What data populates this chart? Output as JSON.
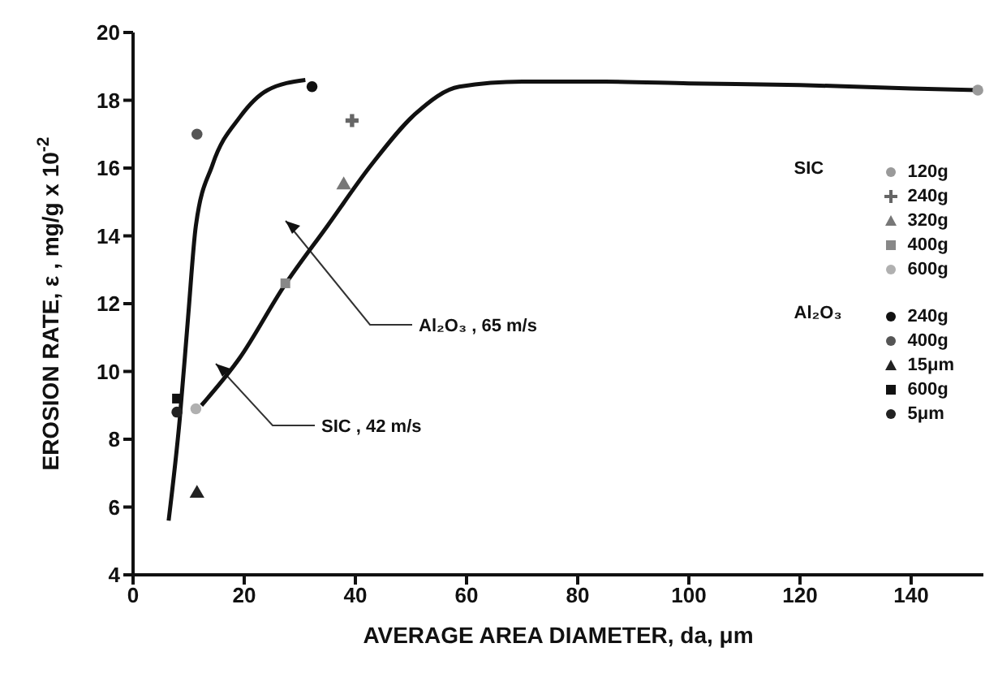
{
  "chart_data": {
    "type": "scatter",
    "xlabel": "AVERAGE AREA DIAMETER, da, μm",
    "ylabel": "EROSION RATE, ε , mg/g x 10$^{-2}$",
    "xlim": [
      0,
      153
    ],
    "ylim": [
      4,
      20
    ],
    "xticks": [
      0,
      20,
      40,
      60,
      80,
      100,
      120,
      140
    ],
    "yticks": [
      4,
      6,
      8,
      10,
      12,
      14,
      16,
      18,
      20
    ],
    "legend": "right",
    "annotations": [
      "SIC",
      "Al₂O₃"
    ],
    "series": [
      {
        "name": "120g",
        "color": "#9a9a9a",
        "marker": "circle",
        "x": [
          152
        ],
        "values": [
          18.3
        ]
      },
      {
        "name": "240g",
        "color": "#666666",
        "marker": "cross",
        "x": [
          39.4
        ],
        "values": [
          17.4
        ]
      },
      {
        "name": "320g",
        "color": "#777777",
        "marker": "triangle",
        "x": [
          37.9
        ],
        "values": [
          15.5
        ]
      },
      {
        "name": "400g",
        "color": "#888888",
        "marker": "square",
        "x": [
          27.4
        ],
        "values": [
          12.6
        ]
      },
      {
        "name": "600g",
        "color": "#b0b0b0",
        "marker": "circle",
        "x": [
          11.3
        ],
        "values": [
          8.9
        ]
      },
      {
        "name": "240g",
        "color": "#111111",
        "marker": "circle",
        "x": [
          32.2
        ],
        "values": [
          18.4
        ]
      },
      {
        "name": "400g",
        "color": "#555555",
        "marker": "circle",
        "x": [
          11.5
        ],
        "values": [
          17.0
        ]
      },
      {
        "name": "15μm",
        "color": "#222222",
        "marker": "triangle",
        "x": [
          11.5
        ],
        "values": [
          6.4
        ]
      },
      {
        "name": "600g",
        "color": "#111111",
        "marker": "square",
        "x": [
          7.9
        ],
        "values": [
          9.2
        ]
      },
      {
        "name": "5μm",
        "color": "#222222",
        "marker": "circle",
        "x": [
          7.9
        ],
        "values": [
          8.8
        ]
      },
      {
        "name": "Al₂O₃ , 65 m/s",
        "type": "line",
        "color": "#111111",
        "marker": "none",
        "x": [
          6.4,
          8.4,
          9.9,
          11.3,
          14.3,
          19.2,
          24.2,
          31
        ],
        "values": [
          5.6,
          8.6,
          11.6,
          14.3,
          16.1,
          17.5,
          18.3,
          18.6
        ]
      },
      {
        "name": "SIC , 42 m/s",
        "type": "line",
        "color": "#111111",
        "marker": "none",
        "x": [
          12.3,
          19.2,
          27.1,
          35,
          42.9,
          50.8,
          58.7,
          70,
          85,
          100,
          120,
          140,
          152
        ],
        "values": [
          9.0,
          10.4,
          12.5,
          14.3,
          16.1,
          17.6,
          18.4,
          18.55,
          18.55,
          18.5,
          18.45,
          18.35,
          18.3
        ]
      }
    ]
  }
}
